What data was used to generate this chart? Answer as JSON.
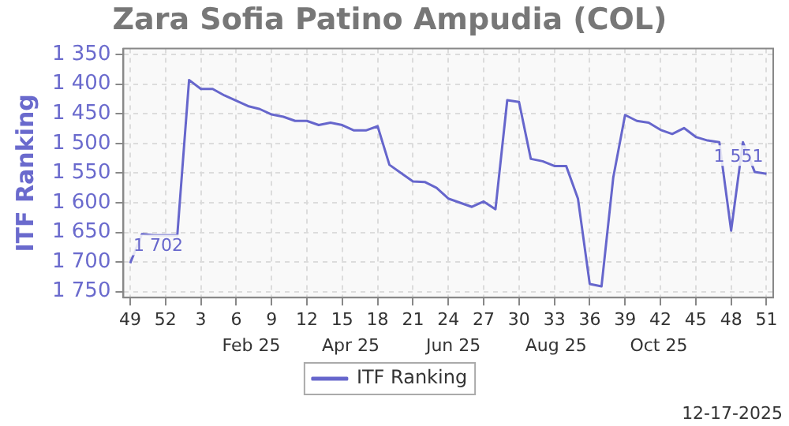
{
  "chart_data": {
    "type": "line",
    "title": "Zara Sofia Patino Ampudia (COL)",
    "ylabel": "ITF Ranking",
    "x": [
      "2024-12-02",
      "2024-12-09",
      "2024-12-16",
      "2024-12-23",
      "2024-12-30",
      "2025-01-06",
      "2025-01-13",
      "2025-01-20",
      "2025-01-27",
      "2025-02-03",
      "2025-02-10",
      "2025-02-17",
      "2025-02-24",
      "2025-03-03",
      "2025-03-10",
      "2025-03-17",
      "2025-03-24",
      "2025-03-31",
      "2025-04-07",
      "2025-04-14",
      "2025-04-21",
      "2025-04-28",
      "2025-05-05",
      "2025-05-12",
      "2025-05-19",
      "2025-05-26",
      "2025-06-02",
      "2025-06-09",
      "2025-06-16",
      "2025-06-23",
      "2025-06-30",
      "2025-07-07",
      "2025-07-14",
      "2025-07-21",
      "2025-07-28",
      "2025-08-04",
      "2025-08-11",
      "2025-08-18",
      "2025-08-25",
      "2025-09-01",
      "2025-09-08",
      "2025-09-15",
      "2025-09-22",
      "2025-09-29",
      "2025-10-06",
      "2025-10-13",
      "2025-10-20",
      "2025-10-27",
      "2025-11-03",
      "2025-11-10",
      "2025-11-17",
      "2025-11-24",
      "2025-12-01",
      "2025-12-08",
      "2025-12-15"
    ],
    "series": [
      {
        "name": "ITF Ranking",
        "color": "#6666cc",
        "values": [
          1702,
          1653,
          1655,
          1655,
          1655,
          1393,
          1408,
          1408,
          1419,
          1428,
          1437,
          1442,
          1451,
          1455,
          1462,
          1462,
          1469,
          1465,
          1469,
          1478,
          1478,
          1471,
          1536,
          1550,
          1564,
          1565,
          1575,
          1593,
          1600,
          1607,
          1598,
          1611,
          1427,
          1430,
          1526,
          1530,
          1538,
          1538,
          1593,
          1737,
          1741,
          1557,
          1452,
          1462,
          1465,
          1477,
          1484,
          1474,
          1489,
          1495,
          1498,
          1647,
          1498,
          1548,
          1551
        ]
      }
    ],
    "xlim": [
      "2024-11-28",
      "2025-12-19"
    ],
    "xticks": [
      {
        "value": "2024-12-02",
        "label": "49"
      },
      {
        "value": "2024-12-23",
        "label": "52"
      },
      {
        "value": "2025-01-13",
        "label": "3"
      },
      {
        "value": "2025-02-03",
        "label": "6"
      },
      {
        "value": "2025-02-24",
        "label": "9"
      },
      {
        "value": "2025-03-17",
        "label": "12"
      },
      {
        "value": "2025-04-07",
        "label": "15"
      },
      {
        "value": "2025-04-28",
        "label": "18"
      },
      {
        "value": "2025-05-19",
        "label": "21"
      },
      {
        "value": "2025-06-09",
        "label": "24"
      },
      {
        "value": "2025-06-30",
        "label": "27"
      },
      {
        "value": "2025-07-21",
        "label": "30"
      },
      {
        "value": "2025-08-11",
        "label": "33"
      },
      {
        "value": "2025-09-01",
        "label": "36"
      },
      {
        "value": "2025-09-22",
        "label": "39"
      },
      {
        "value": "2025-10-13",
        "label": "42"
      },
      {
        "value": "2025-11-03",
        "label": "45"
      },
      {
        "value": "2025-11-24",
        "label": "48"
      },
      {
        "value": "2025-12-15",
        "label": "51"
      }
    ],
    "x2lim": [
      "2024-11-28",
      "2025-12-19"
    ],
    "x2ticks": [
      {
        "value": "2025-02-12",
        "label": "Feb 25"
      },
      {
        "value": "2025-04-12",
        "label": "Apr 25"
      },
      {
        "value": "2025-06-12",
        "label": "Jun 25"
      },
      {
        "value": "2025-08-12",
        "label": "Aug 25"
      },
      {
        "value": "2025-10-12",
        "label": "Oct 25"
      }
    ],
    "ylim": [
      1760,
      1340
    ],
    "yticks": [
      {
        "value": 1350,
        "label": "1 350"
      },
      {
        "value": 1400,
        "label": "1 400"
      },
      {
        "value": 1450,
        "label": "1 450"
      },
      {
        "value": 1500,
        "label": "1 500"
      },
      {
        "value": 1550,
        "label": "1 550"
      },
      {
        "value": 1600,
        "label": "1 600"
      },
      {
        "value": 1650,
        "label": "1 650"
      },
      {
        "value": 1700,
        "label": "1 700"
      },
      {
        "value": 1750,
        "label": "1 750"
      }
    ],
    "annotations": [
      {
        "text": "1 702",
        "x": "2024-12-02",
        "y": 1702
      },
      {
        "text": "1 551",
        "x": "2025-12-15",
        "y": 1551
      },
      "12-17-2025"
    ],
    "grid": true,
    "legend": "bottom",
    "marker": "none",
    "line_style": "solid"
  }
}
